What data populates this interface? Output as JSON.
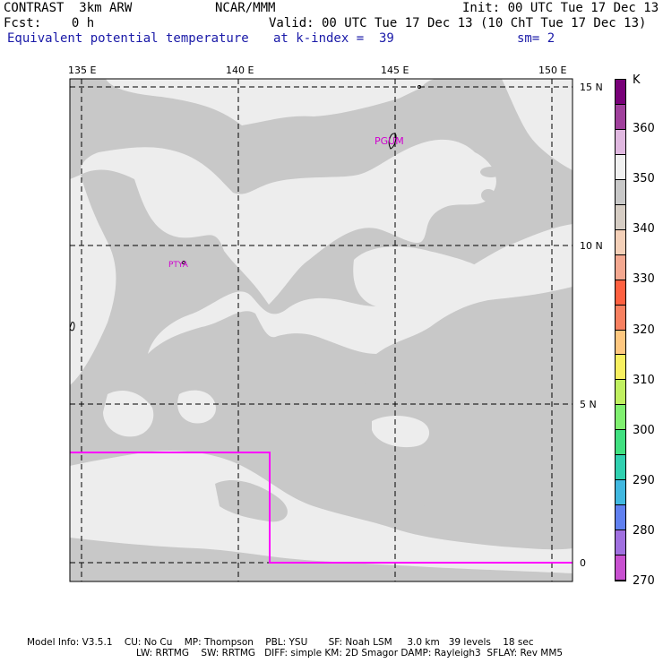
{
  "header": {
    "model": "CONTRAST  3km ARW",
    "org": "NCAR/MMM",
    "init": "Init: 00 UTC Tue 17 Dec 13",
    "fcst": "Fcst:    0 h",
    "valid": "Valid: 00 UTC Tue 17 Dec 13 (10 ChT Tue 17 Dec 13)",
    "field": "Equivalent potential temperature",
    "level": "at k-index =  39",
    "smooth": "sm= 2"
  },
  "map": {
    "lon_labels": [
      "135 E",
      "140 E",
      "145 E",
      "150 E"
    ],
    "lat_labels": [
      "15 N",
      "10 N",
      "5 N",
      "0"
    ],
    "stations": [
      "PGUM",
      "PTYA"
    ],
    "fill_colors": {
      "background": "#c8c8c8",
      "light": "#ededed",
      "border": "#ff00ff"
    }
  },
  "colorbar": {
    "unit": "K",
    "labels": [
      "360",
      "350",
      "340",
      "330",
      "320",
      "310",
      "300",
      "290",
      "280",
      "270"
    ],
    "colors": [
      "#780078",
      "#a0409c",
      "#e0b8e0",
      "#f0f0f0",
      "#c8c8c8",
      "#d6cdc4",
      "#f4d0b8",
      "#f4a890",
      "#ff6040",
      "#f88060",
      "#ffc880",
      "#f8f060",
      "#c0f060",
      "#80f070",
      "#40e080",
      "#30d0b0",
      "#40b8e0",
      "#6080f0",
      "#a070e0",
      "#c850d0"
    ]
  },
  "footer": {
    "line1": "Model Info: V3.5.1    CU: No Cu    MP: Thompson    PBL: YSU       SF: Noah LSM     3.0 km   39 levels    18 sec",
    "line2": "LW: RRTMG    SW: RRTMG   DIFF: simple KM: 2D Smagor DAMP: Rayleigh3  SFLAY: Rev MM5"
  }
}
